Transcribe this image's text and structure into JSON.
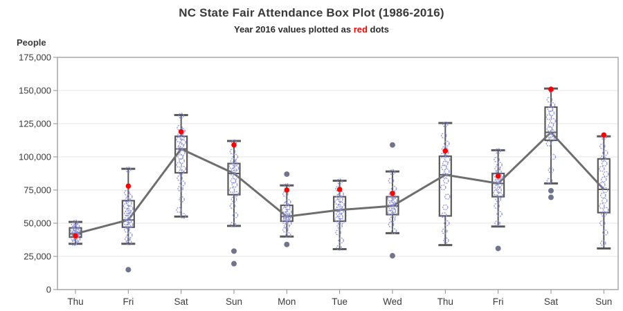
{
  "header": {
    "title": "NC State Fair Attendance Box Plot (1986-2016)",
    "subtitle_prefix": "Year 2016 values plotted as ",
    "subtitle_red": "red",
    "subtitle_suffix": " dots"
  },
  "chart_data": {
    "type": "bar",
    "subtype": "boxplot-with-points",
    "title": "NC State Fair Attendance Box Plot (1986-2016)",
    "subtitle": "Year 2016 values plotted as red dots",
    "ylabel": "People",
    "xlabel": "",
    "ylim": [
      0,
      175000
    ],
    "ytick_step": 25000,
    "yticks": [
      0,
      25000,
      50000,
      75000,
      100000,
      125000,
      150000,
      175000
    ],
    "grid": true,
    "categories": [
      "Thu",
      "Fri",
      "Sat",
      "Sun",
      "Mon",
      "Tue",
      "Wed",
      "Thu",
      "Fri",
      "Sat",
      "Sun"
    ],
    "boxes": [
      {
        "whisker_low": 34500,
        "q1": 39500,
        "median": 42000,
        "q3": 46500,
        "whisker_high": 51000
      },
      {
        "whisker_low": 34500,
        "q1": 47000,
        "median": 52500,
        "q3": 67000,
        "whisker_high": 91000
      },
      {
        "whisker_low": 55000,
        "q1": 88000,
        "median": 106000,
        "q3": 115500,
        "whisker_high": 131500
      },
      {
        "whisker_low": 48000,
        "q1": 71500,
        "median": 87500,
        "q3": 95000,
        "whisker_high": 112000
      },
      {
        "whisker_low": 40000,
        "q1": 51500,
        "median": 55000,
        "q3": 63500,
        "whisker_high": 78500
      },
      {
        "whisker_low": 30500,
        "q1": 51500,
        "median": 60000,
        "q3": 70000,
        "whisker_high": 82000
      },
      {
        "whisker_low": 42500,
        "q1": 56500,
        "median": 63000,
        "q3": 70000,
        "whisker_high": 89000
      },
      {
        "whisker_low": 33500,
        "q1": 55500,
        "median": 86500,
        "q3": 100500,
        "whisker_high": 125500
      },
      {
        "whisker_low": 47500,
        "q1": 70000,
        "median": 80000,
        "q3": 87500,
        "whisker_high": 105000
      },
      {
        "whisker_low": 80000,
        "q1": 112500,
        "median": 118500,
        "q3": 137500,
        "whisker_high": 151500
      },
      {
        "whisker_low": 31000,
        "q1": 58000,
        "median": 75500,
        "q3": 98500,
        "whisker_high": 115500
      }
    ],
    "red_dots_2016": [
      40500,
      78000,
      119000,
      109000,
      75000,
      75500,
      72500,
      104500,
      85500,
      151000,
      116500
    ],
    "outliers": [
      [],
      [
        15000
      ],
      [],
      [
        29000,
        19500
      ],
      [
        87000,
        34000
      ],
      [],
      [
        109000,
        25500
      ],
      [],
      [
        31000
      ],
      [
        74500,
        69500
      ],
      []
    ],
    "points": [
      [
        50500,
        49000,
        47500,
        46500,
        45500,
        44500,
        44000,
        43000,
        42500,
        41500,
        41000,
        40000,
        39000,
        38000,
        36500,
        35000
      ],
      [
        90500,
        73000,
        70000,
        67500,
        65000,
        63000,
        61000,
        59000,
        57500,
        56000,
        54000,
        52000,
        50500,
        49000,
        47500,
        45000,
        41000,
        38000,
        35500
      ],
      [
        131000,
        122000,
        119500,
        117000,
        115000,
        113000,
        111000,
        108500,
        106000,
        103000,
        100000,
        97000,
        94000,
        91000,
        88500,
        84000,
        80000,
        76000,
        68000,
        60000,
        55500
      ],
      [
        111000,
        104000,
        100000,
        97000,
        95000,
        93000,
        91500,
        90000,
        88000,
        85000,
        82000,
        79000,
        75000,
        72000,
        68000,
        63000,
        56000,
        49000
      ],
      [
        78000,
        72000,
        66000,
        64000,
        62000,
        60000,
        58500,
        57000,
        55500,
        54500,
        53500,
        52500,
        51500,
        50000,
        48000,
        45000,
        41000
      ],
      [
        81500,
        76000,
        72000,
        70000,
        68000,
        66000,
        64000,
        62000,
        60500,
        59000,
        57000,
        55000,
        53000,
        51500,
        48000,
        43000,
        37000,
        31500
      ],
      [
        88500,
        82000,
        76000,
        72000,
        70000,
        68500,
        67000,
        65500,
        64000,
        62500,
        61000,
        59500,
        58000,
        56500,
        53000,
        49000,
        44000
      ],
      [
        124500,
        116000,
        110000,
        106000,
        103000,
        101000,
        98000,
        95000,
        92000,
        89000,
        86000,
        82000,
        77000,
        70000,
        62000,
        56000,
        50000,
        44000,
        37000
      ],
      [
        104500,
        98000,
        94000,
        91000,
        88500,
        86500,
        84500,
        83000,
        81000,
        79000,
        77000,
        75000,
        73000,
        71000,
        68000,
        63000,
        57000,
        50000
      ],
      [
        150500,
        143000,
        139000,
        136000,
        133000,
        130000,
        127000,
        124000,
        121000,
        118500,
        116000,
        113500,
        110000,
        100000,
        90000,
        82000
      ],
      [
        115000,
        108000,
        103000,
        99000,
        95000,
        91000,
        87000,
        83000,
        79000,
        75000,
        71000,
        67000,
        63000,
        60000,
        57000,
        50000,
        43000,
        35000
      ]
    ],
    "legend_position": "none",
    "colors": {
      "box_stroke": "#595959",
      "whisker_stroke": "#595959",
      "connect_line": "#6e6e6e",
      "point_stroke": "#8c90dd",
      "outlier_fill": "#62667f",
      "red_dot": "#ff0000",
      "grid": "#e4e4e4",
      "frame": "#9a9a9a",
      "tick": "#8c8c8c",
      "text": "#3a3a3a"
    }
  }
}
